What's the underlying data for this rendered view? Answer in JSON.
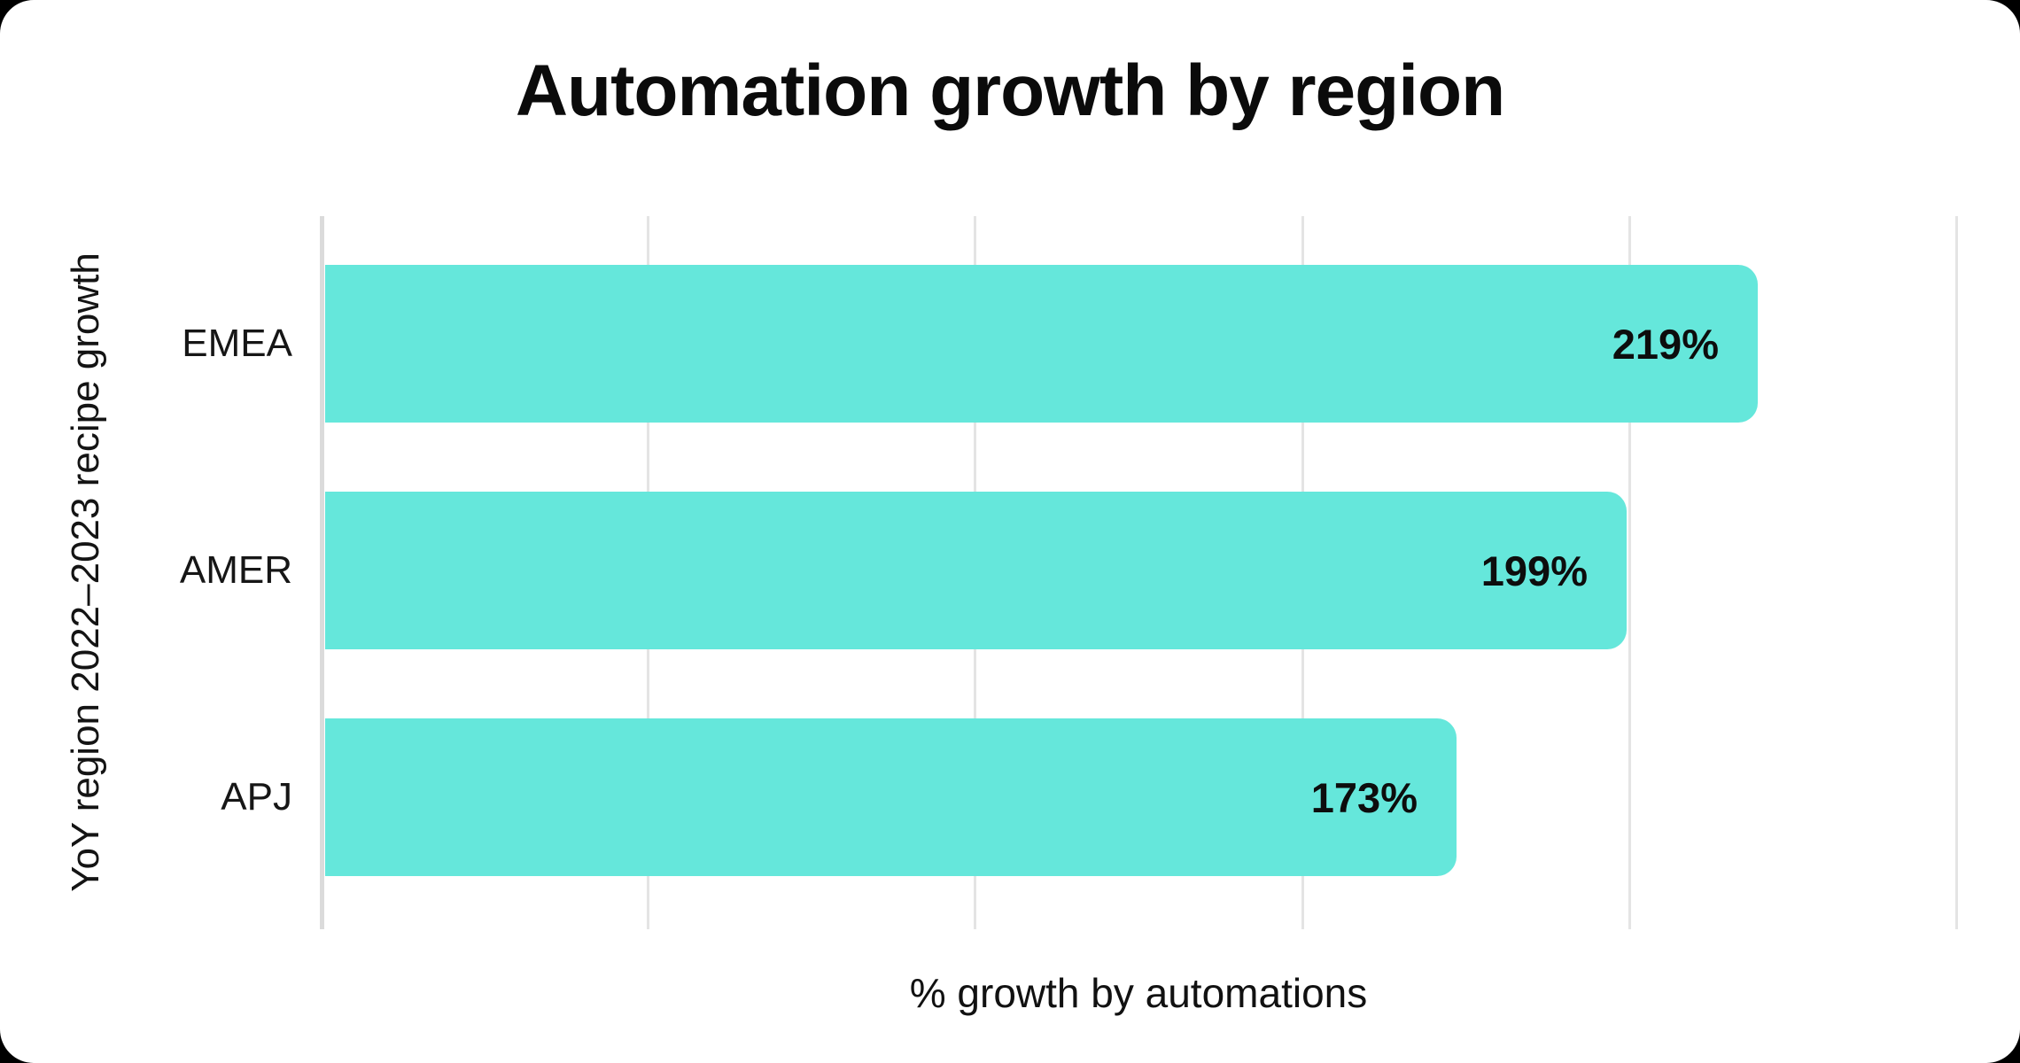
{
  "page": {
    "background_color": "#000000",
    "card_color": "#ffffff"
  },
  "chart_data": {
    "type": "bar",
    "orientation": "horizontal",
    "title": "Automation growth by region",
    "xlabel": "% growth by automations",
    "ylabel": "YoY region 2022–2023 recipe growth",
    "categories": [
      "EMEA",
      "AMER",
      "APJ"
    ],
    "values": [
      219,
      199,
      173
    ],
    "value_labels": [
      "219%",
      "199%",
      "173%"
    ],
    "xlim": [
      0,
      250
    ],
    "gridline_step": 50,
    "grid": "vertical gridlines only, no numeric tick labels",
    "legend_position": "none",
    "colors": {
      "bar": "#65E7DB",
      "gridline": "#E4E4E4",
      "axis_line": "#DBDBDB",
      "text": "#111111"
    }
  }
}
